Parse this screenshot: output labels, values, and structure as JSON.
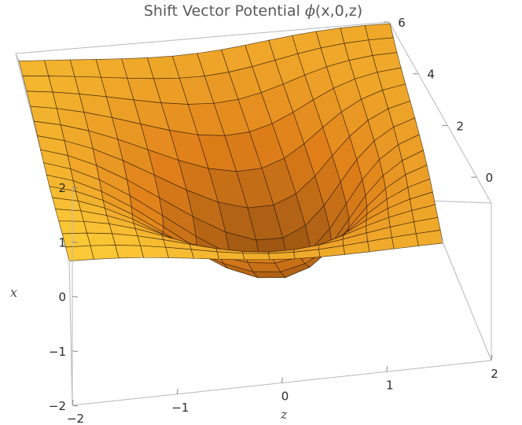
{
  "chart_data": {
    "type": "surface3d",
    "title_main": "Shift Vector Potential ",
    "title_phi": "ϕ",
    "title_args": "(x,0,z)",
    "xlabel": "x",
    "zlabel_bottom": "z",
    "x_range": [
      -2,
      2
    ],
    "z_range": [
      -2,
      2
    ],
    "value_range": [
      -1,
      6
    ],
    "x_ticks": [
      {
        "value": -2,
        "label": "−2"
      },
      {
        "value": -1,
        "label": "−1"
      },
      {
        "value": 0,
        "label": "0"
      },
      {
        "value": 1,
        "label": "1"
      },
      {
        "value": 2,
        "label": "2"
      }
    ],
    "z_ticks": [
      {
        "value": -2,
        "label": "−2"
      },
      {
        "value": -1,
        "label": "−1"
      },
      {
        "value": 0,
        "label": "0"
      },
      {
        "value": 1,
        "label": "1"
      },
      {
        "value": 2,
        "label": "2"
      }
    ],
    "value_ticks": [
      {
        "value": 0,
        "label": "0"
      },
      {
        "value": 2,
        "label": "2"
      },
      {
        "value": 4,
        "label": "4"
      },
      {
        "value": 6,
        "label": "6"
      }
    ],
    "surface": {
      "description_formula": "phi = 6 * (1 - exp(-(x^2+z^2)/1.5)) + 0.6*x*z*exp(-(x^2+z^2)/3)",
      "min_value": 0,
      "max_value": 6,
      "mesh_lines": 15
    },
    "colors": {
      "low": "#8a4a10",
      "mid": "#e07f1a",
      "high": "#ffd23a",
      "mesh": "#2a1a08",
      "box": "#b8b8b8"
    }
  }
}
